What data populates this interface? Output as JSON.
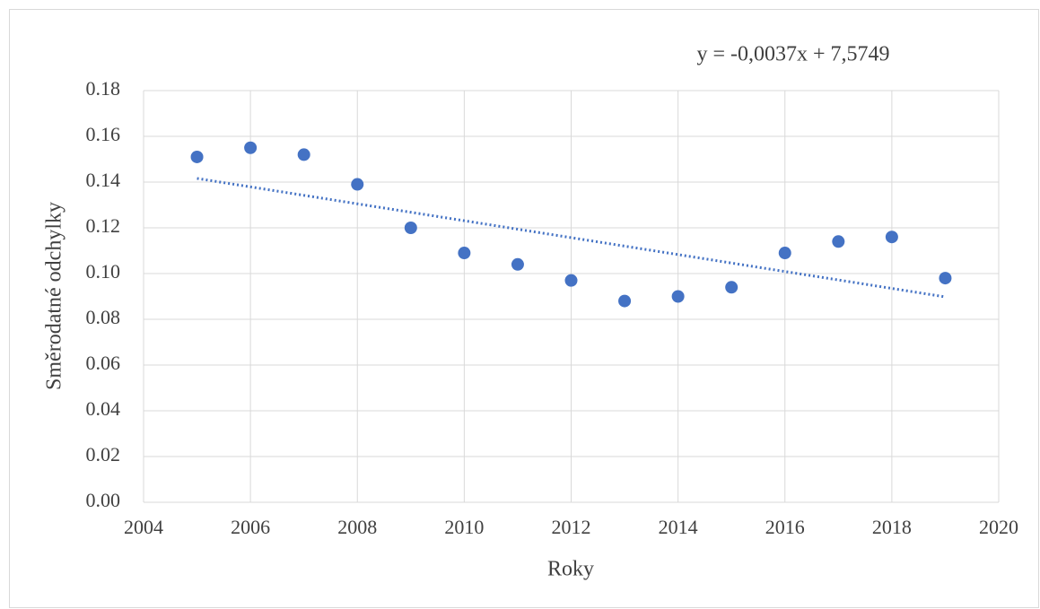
{
  "chart_data": {
    "type": "scatter",
    "x_label": "Roky",
    "y_label": "Směrodatné odchylky",
    "annotation": "y = -0,0037x + 7,5749",
    "x": [
      2005,
      2006,
      2007,
      2008,
      2009,
      2010,
      2011,
      2012,
      2013,
      2014,
      2015,
      2016,
      2017,
      2018,
      2019
    ],
    "values": [
      0.151,
      0.155,
      0.152,
      0.139,
      0.12,
      0.109,
      0.104,
      0.097,
      0.088,
      0.09,
      0.094,
      0.109,
      0.114,
      0.116,
      0.098
    ],
    "color": "#4472c4",
    "trendline": {
      "x": [
        2005,
        2019
      ],
      "values": [
        0.1416,
        0.0898
      ],
      "color": "#4472c4"
    },
    "xlim": [
      2004,
      2020
    ],
    "xticks": [
      2004,
      2006,
      2008,
      2010,
      2012,
      2014,
      2016,
      2018,
      2020
    ],
    "ylim": [
      0,
      0.18
    ],
    "yticks": [
      {
        "value": 0,
        "label": "0.00"
      },
      0.02,
      0.04,
      0.06,
      0.08,
      {
        "value": 0.1,
        "label": "0.10"
      },
      0.12,
      0.14,
      0.16,
      0.18
    ],
    "grid": true
  }
}
